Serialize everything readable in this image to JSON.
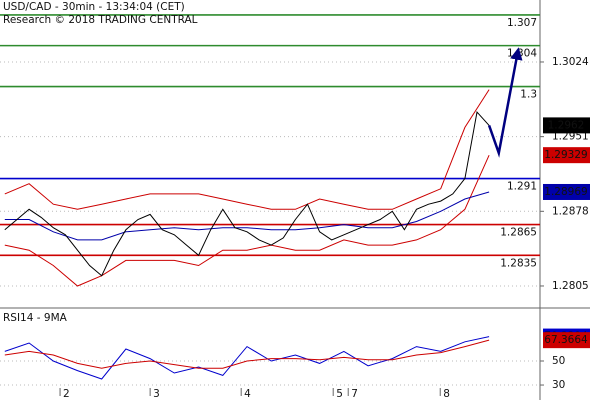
{
  "chart_data": [
    {
      "type": "line",
      "title": "USD/CAD - 30min - 13:34:04 (CET)",
      "subtitle": "Research © 2018 TRADING CENTRAL",
      "xlim": [
        -1,
        110.5
      ],
      "ylim": [
        1.27864,
        1.30846
      ],
      "yticks": [
        1.3024,
        1.2951,
        1.2878,
        1.2805
      ],
      "grid": true,
      "levels": [
        {
          "value": 1.307,
          "label": "1.307",
          "color": "#2e8b2e"
        },
        {
          "value": 1.304,
          "label": "1.304",
          "color": "#2e8b2e"
        },
        {
          "value": 1.3,
          "label": "1.3",
          "color": "#2e8b2e"
        },
        {
          "value": 1.291,
          "label": "1.291",
          "color": "#0000cc"
        },
        {
          "value": 1.2865,
          "label": "1.2865",
          "color": "#cc0000"
        },
        {
          "value": 1.2835,
          "label": "1.2835",
          "color": "#cc0000"
        }
      ],
      "series": [
        {
          "color": "#cc0000",
          "x": [
            0,
            5,
            10,
            15,
            20,
            25,
            30,
            35,
            40,
            45,
            50,
            55,
            60,
            65,
            70,
            75,
            80,
            85,
            90,
            95,
            100
          ],
          "values": [
            1.2895,
            1.2905,
            1.2885,
            1.288,
            1.2885,
            1.289,
            1.2895,
            1.2895,
            1.2895,
            1.289,
            1.2885,
            1.288,
            1.288,
            1.289,
            1.2885,
            1.288,
            1.288,
            1.289,
            1.29,
            1.296,
            1.2997
          ]
        },
        {
          "color": "#cc0000",
          "tag": true,
          "x": [
            0,
            5,
            10,
            15,
            20,
            25,
            30,
            35,
            40,
            45,
            50,
            55,
            60,
            65,
            70,
            75,
            80,
            85,
            90,
            95,
            100
          ],
          "values": [
            1.2845,
            1.284,
            1.2825,
            1.2805,
            1.2815,
            1.283,
            1.283,
            1.283,
            1.2825,
            1.284,
            1.284,
            1.2845,
            1.284,
            1.284,
            1.285,
            1.2845,
            1.2845,
            1.285,
            1.286,
            1.288,
            1.29329
          ]
        },
        {
          "color": "#0000aa",
          "tag": true,
          "x": [
            0,
            5,
            10,
            15,
            20,
            25,
            30,
            35,
            40,
            45,
            50,
            55,
            60,
            65,
            70,
            75,
            80,
            85,
            90,
            95,
            100
          ],
          "values": [
            1.287,
            1.287,
            1.2858,
            1.285,
            1.285,
            1.2858,
            1.286,
            1.2862,
            1.286,
            1.2862,
            1.2862,
            1.286,
            1.286,
            1.2862,
            1.2865,
            1.2862,
            1.2862,
            1.2868,
            1.2878,
            1.289,
            1.28969
          ]
        },
        {
          "color": "#000000",
          "tag": true,
          "x": [
            0,
            2.5,
            5,
            7.5,
            10,
            12.5,
            15,
            17.5,
            20,
            22.5,
            25,
            27.5,
            30,
            32.5,
            35,
            37.5,
            40,
            42.5,
            45,
            47.5,
            50,
            52.5,
            55,
            57.5,
            60,
            62.5,
            65,
            67.5,
            70,
            72.5,
            75,
            77.5,
            80,
            82.5,
            85,
            87.5,
            90,
            92.5,
            95,
            97.5,
            100
          ],
          "values": [
            1.286,
            1.287,
            1.288,
            1.2872,
            1.2862,
            1.2855,
            1.284,
            1.2825,
            1.2815,
            1.284,
            1.286,
            1.287,
            1.2875,
            1.286,
            1.2855,
            1.2845,
            1.2835,
            1.286,
            1.288,
            1.2862,
            1.2858,
            1.285,
            1.2845,
            1.2852,
            1.287,
            1.2885,
            1.2858,
            1.285,
            1.2855,
            1.286,
            1.2865,
            1.287,
            1.2878,
            1.286,
            1.288,
            1.2885,
            1.2888,
            1.2895,
            1.291,
            1.2975,
            1.2962
          ]
        },
        {
          "color": "#000080",
          "arrow": true,
          "x": [
            100,
            102,
            106
          ],
          "values": [
            1.2962,
            1.2935,
            1.3036
          ]
        }
      ]
    },
    {
      "type": "line",
      "title": "RSI14 - 9MA",
      "xlim": [
        -1,
        110.5
      ],
      "ylim": [
        21.7,
        90.8
      ],
      "yticks": [
        50,
        30
      ],
      "grid": true,
      "xticks": [
        {
          "value": 11.4,
          "label": "2"
        },
        {
          "value": 30,
          "label": "3"
        },
        {
          "value": 48.8,
          "label": "4"
        },
        {
          "value": 67.8,
          "label": "5"
        },
        {
          "value": 70.9,
          "label": "7"
        },
        {
          "value": 89.9,
          "label": "8"
        }
      ],
      "series": [
        {
          "color": "#0000cc",
          "tag": true,
          "x": [
            0,
            5,
            10,
            15,
            20,
            25,
            30,
            35,
            40,
            45,
            50,
            55,
            60,
            65,
            70,
            75,
            80,
            85,
            90,
            95,
            100
          ],
          "values": [
            58,
            65,
            50,
            42,
            35,
            60,
            52,
            40,
            45,
            38,
            62,
            50,
            55,
            48,
            58,
            46,
            52,
            62,
            58,
            66,
            70.3394
          ]
        },
        {
          "color": "#cc0000",
          "tag": true,
          "x": [
            0,
            5,
            10,
            15,
            20,
            25,
            30,
            35,
            40,
            45,
            50,
            55,
            60,
            65,
            70,
            75,
            80,
            85,
            90,
            95,
            100
          ],
          "values": [
            55,
            58,
            55,
            48,
            44,
            48,
            50,
            47,
            44,
            44,
            50,
            52,
            52,
            51,
            53,
            51,
            51,
            55,
            57,
            62,
            67.3664
          ]
        }
      ]
    }
  ]
}
